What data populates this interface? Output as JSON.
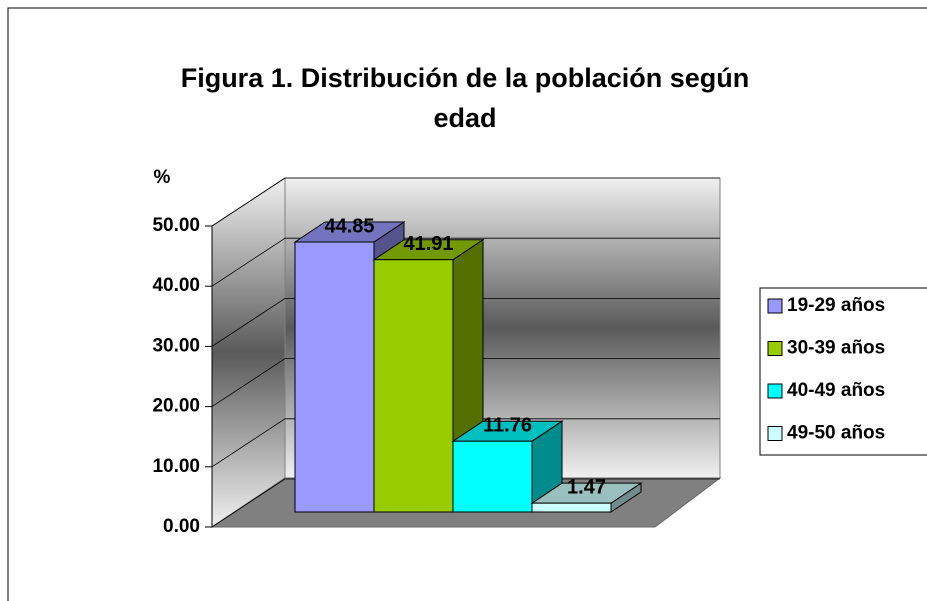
{
  "chart_data": {
    "type": "bar",
    "title": [
      "Figura 1.  Distribución de la población según",
      "edad"
    ],
    "y_label": "%",
    "series": [
      {
        "name": "19-29 años",
        "color": "#9999ff",
        "values": [
          44.85
        ]
      },
      {
        "name": "30-39 años",
        "color": "#99cc00",
        "values": [
          41.91
        ]
      },
      {
        "name": "40-49 años",
        "color": "#00ffff",
        "values": [
          11.76
        ]
      },
      {
        "name": "49-50 años",
        "color": "#ccffff",
        "values": [
          1.47
        ]
      }
    ],
    "ylim": [
      0,
      50
    ],
    "yticks": [
      {
        "value": 0,
        "label": "0.00"
      },
      {
        "value": 10,
        "label": "10.00"
      },
      {
        "value": 20,
        "label": "20.00"
      },
      {
        "value": 30,
        "label": "30.00"
      },
      {
        "value": 40,
        "label": "40.00"
      },
      {
        "value": 50,
        "label": "50.00"
      }
    ],
    "grid": true,
    "legend": "right"
  }
}
